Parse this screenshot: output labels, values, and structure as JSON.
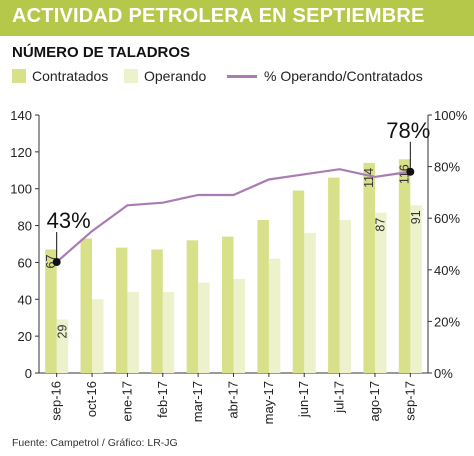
{
  "header": {
    "title": "ACTIVIDAD PETROLERA EN SEPTIEMBRE"
  },
  "subtitle": "NÚMERO DE TALADROS",
  "legend": {
    "contracted": "Contratados",
    "operating": "Operando",
    "ratio": "% Operando/Contratados"
  },
  "source": "Fuente: Campetrol / Gráfico: LR-JG",
  "colors": {
    "header": "#b6c84a",
    "contracted": "#d8e08a",
    "operating": "#edf1cc",
    "ratio_line": "#a97cb3",
    "marker": "#111111"
  },
  "chart_data": {
    "type": "bar",
    "categories": [
      "sep-16",
      "oct-16",
      "ene-17",
      "feb-17",
      "mar-17",
      "abr-17",
      "may-17",
      "jun-17",
      "jul-17",
      "ago-17",
      "sep-17"
    ],
    "series": [
      {
        "name": "Contratados",
        "values": [
          67,
          73,
          68,
          67,
          72,
          74,
          83,
          99,
          106,
          114,
          116
        ]
      },
      {
        "name": "Operando",
        "values": [
          29,
          40,
          44,
          44,
          49,
          51,
          62,
          76,
          83,
          87,
          91
        ]
      },
      {
        "name": "% Operando/Contratados",
        "axis": "right",
        "render": "line",
        "values": [
          43,
          55,
          65,
          66,
          69,
          69,
          75,
          77,
          79,
          76,
          78
        ]
      }
    ],
    "value_labels": {
      "contracted": {
        "0": "67",
        "9": "114",
        "10": "116"
      },
      "operating": {
        "0": "29",
        "9": "87",
        "10": "91"
      }
    },
    "annotations": [
      {
        "series": "% Operando/Contratados",
        "index": 0,
        "text": "43%"
      },
      {
        "series": "% Operando/Contratados",
        "index": 10,
        "text": "78%"
      }
    ],
    "left_axis": {
      "ylim": [
        0,
        140
      ],
      "ticks": [
        "0",
        "20",
        "40",
        "60",
        "80",
        "100",
        "120",
        "140"
      ]
    },
    "right_axis": {
      "ylim": [
        0,
        100
      ],
      "ticks": [
        "0%",
        "20%",
        "40%",
        "60%",
        "80%",
        "100%"
      ]
    },
    "grid": false,
    "legend_position": "top-left"
  }
}
